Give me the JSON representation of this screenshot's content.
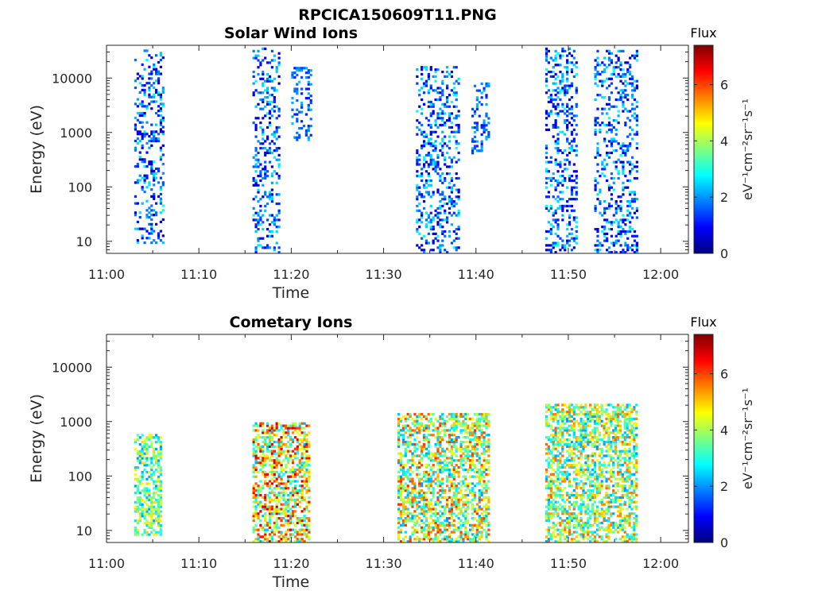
{
  "figure_title": "RPCICA150609T11.PNG",
  "chart_data": [
    {
      "type": "heatmap",
      "title": "Solar Wind Ions",
      "xlabel": "Time",
      "ylabel": "Energy (eV)",
      "x_ticks": [
        "11:00",
        "11:10",
        "11:20",
        "11:30",
        "11:40",
        "11:50",
        "12:00"
      ],
      "y_ticks": [
        "10",
        "100",
        "1000",
        "10000"
      ],
      "y_scale": "log",
      "ylim_eV": [
        6,
        40000
      ],
      "xlim_min": [
        0,
        63
      ],
      "colorbar": {
        "label": "Flux",
        "unit": "eV⁻¹cm⁻²sr⁻¹s⁻¹",
        "ticks": [
          "0",
          "2",
          "4",
          "6"
        ],
        "range": [
          0,
          7.4
        ]
      },
      "bursts": [
        {
          "t": [
            3.0,
            6.1
          ],
          "e": [
            9,
            35000
          ],
          "flux_range": [
            0.3,
            2.8
          ]
        },
        {
          "t": [
            15.8,
            18.7
          ],
          "e": [
            6,
            36000
          ],
          "flux_range": [
            0.3,
            2.8
          ]
        },
        {
          "t": [
            20.0,
            22.2
          ],
          "e": [
            700,
            16000
          ],
          "flux_range": [
            1.0,
            2.4
          ]
        },
        {
          "t": [
            33.5,
            38.2
          ],
          "e": [
            6,
            16000
          ],
          "flux_range": [
            0.3,
            2.9
          ]
        },
        {
          "t": [
            39.5,
            41.5
          ],
          "e": [
            400,
            8000
          ],
          "flux_range": [
            1.0,
            2.4
          ]
        },
        {
          "t": [
            47.5,
            51.0
          ],
          "e": [
            6,
            36000
          ],
          "flux_range": [
            0.3,
            2.9
          ]
        },
        {
          "t": [
            52.8,
            57.4
          ],
          "e": [
            6,
            34000
          ],
          "flux_range": [
            0.3,
            2.9
          ]
        }
      ]
    },
    {
      "type": "heatmap",
      "title": "Cometary Ions",
      "xlabel": "Time",
      "ylabel": "Energy (eV)",
      "x_ticks": [
        "11:00",
        "11:10",
        "11:20",
        "11:30",
        "11:40",
        "11:50",
        "12:00"
      ],
      "y_ticks": [
        "10",
        "100",
        "1000",
        "10000"
      ],
      "y_scale": "log",
      "ylim_eV": [
        6,
        40000
      ],
      "xlim_min": [
        0,
        63
      ],
      "colorbar": {
        "label": "Flux",
        "unit": "eV⁻¹cm⁻²sr⁻¹s⁻¹",
        "ticks": [
          "0",
          "2",
          "4",
          "6"
        ],
        "range": [
          0,
          7.4
        ]
      },
      "bursts": [
        {
          "t": [
            3.0,
            6.0
          ],
          "e": [
            8,
            600
          ],
          "flux_range": [
            2.0,
            5.0
          ]
        },
        {
          "t": [
            15.8,
            22.0
          ],
          "e": [
            6,
            1000
          ],
          "flux_range": [
            2.2,
            7.0
          ]
        },
        {
          "t": [
            31.5,
            41.5
          ],
          "e": [
            6,
            1500
          ],
          "flux_range": [
            2.0,
            6.2
          ]
        },
        {
          "t": [
            47.5,
            57.5
          ],
          "e": [
            6,
            2200
          ],
          "flux_range": [
            2.0,
            5.8
          ]
        }
      ]
    }
  ]
}
